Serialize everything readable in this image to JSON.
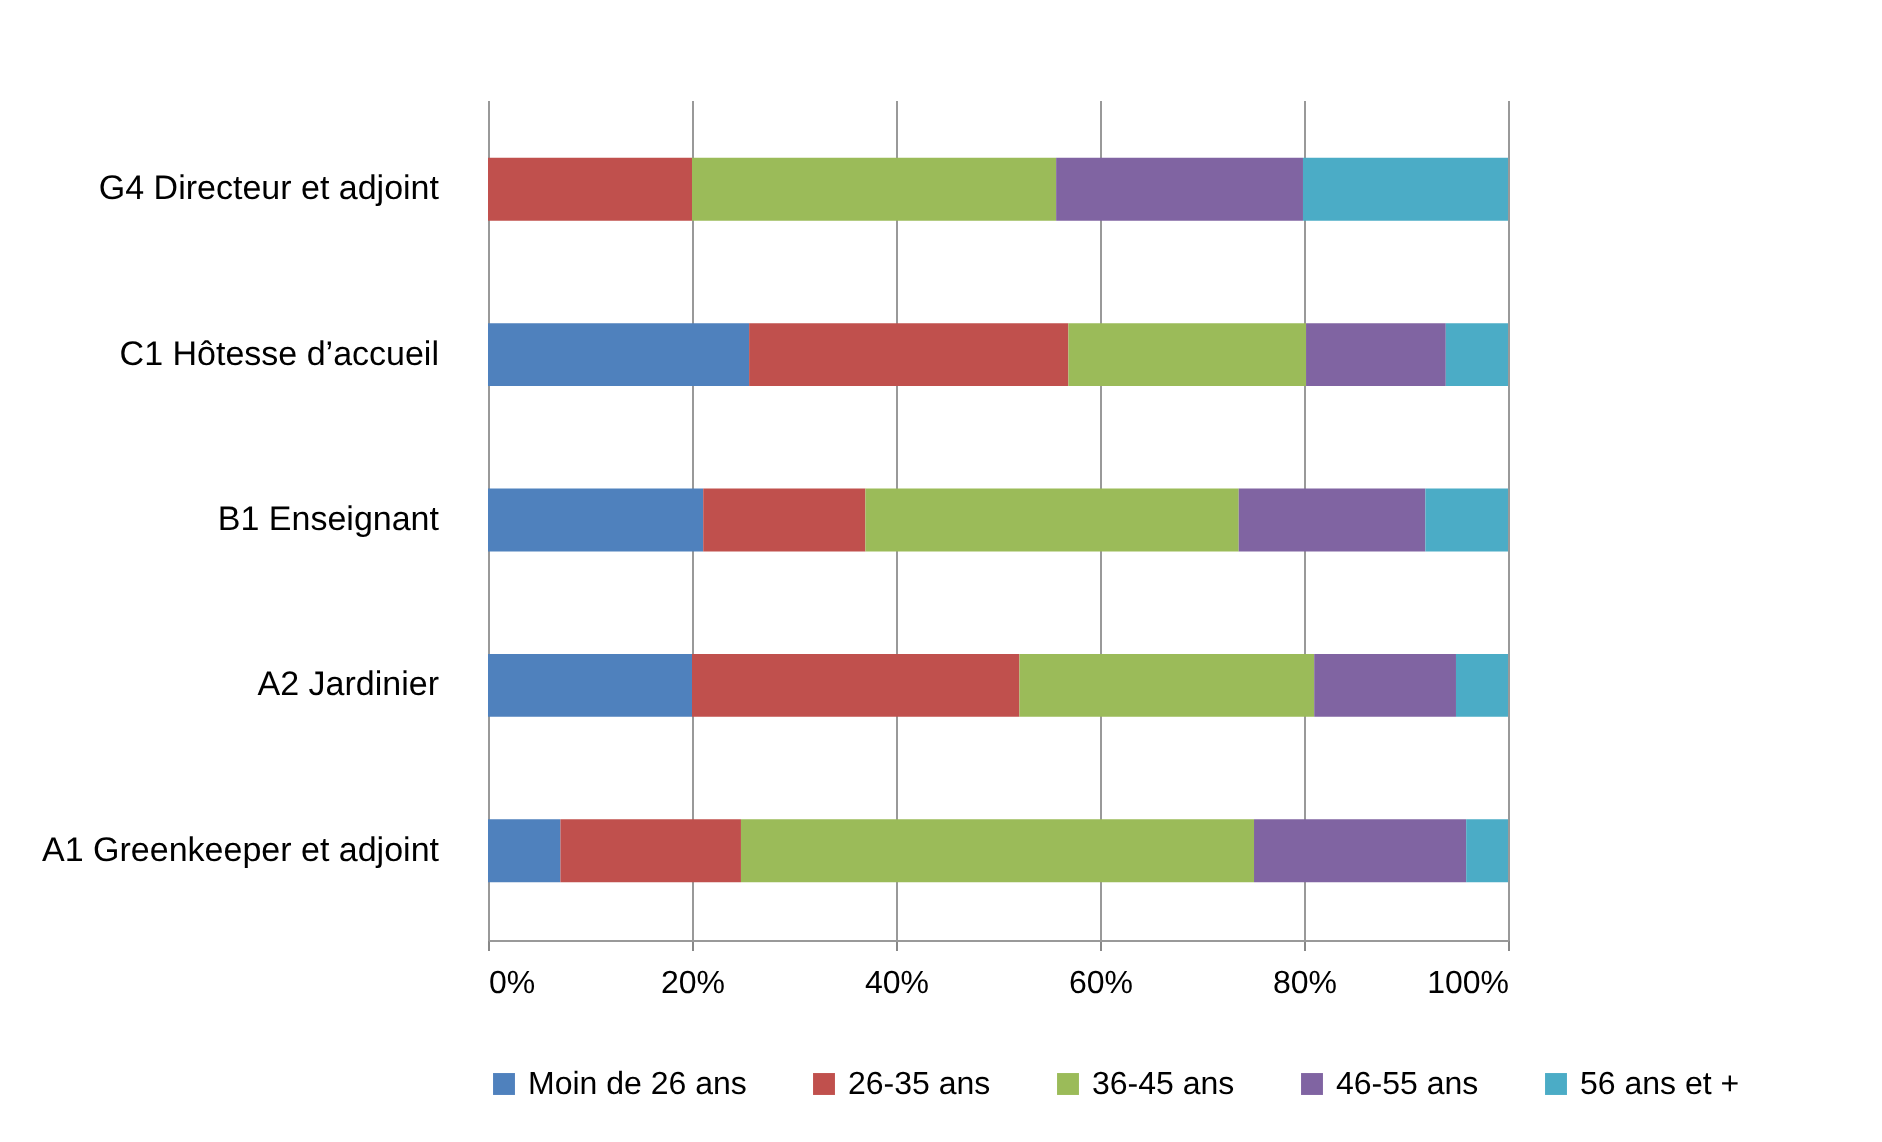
{
  "chart_data": {
    "type": "bar",
    "orientation": "horizontal",
    "stacked": true,
    "categories": [
      "G4 Directeur et adjoint",
      "C1 Hôtesse d’accueil",
      "B1 Enseignant",
      "A2 Jardinier",
      "A1 Greenkeeper et adjoint"
    ],
    "series": [
      {
        "name": "Moin de 26 ans",
        "color": "#4f81bd",
        "values": [
          0,
          25.6,
          21.1,
          20.0,
          7.1
        ]
      },
      {
        "name": "26-35 ans",
        "color": "#c0504d",
        "values": [
          20.0,
          31.3,
          15.9,
          32.1,
          17.7
        ]
      },
      {
        "name": "36-45 ans",
        "color": "#9bbb59",
        "values": [
          35.7,
          23.3,
          36.6,
          28.9,
          50.3
        ]
      },
      {
        "name": "46-55 ans",
        "color": "#8064a2",
        "values": [
          24.2,
          13.7,
          18.3,
          13.9,
          20.8
        ]
      },
      {
        "name": "56 ans et +",
        "color": "#4bacc6",
        "values": [
          20.1,
          6.1,
          8.1,
          5.1,
          4.1
        ]
      }
    ],
    "xlim": [
      0,
      100
    ],
    "xticks": [
      {
        "value": 0,
        "label": "0%"
      },
      {
        "value": 20,
        "label": "20%"
      },
      {
        "value": 40,
        "label": "40%"
      },
      {
        "value": 60,
        "label": "60%"
      },
      {
        "value": 80,
        "label": "80%"
      },
      {
        "value": 100,
        "label": "100%"
      }
    ],
    "grid": "x",
    "legend": "bottom"
  }
}
